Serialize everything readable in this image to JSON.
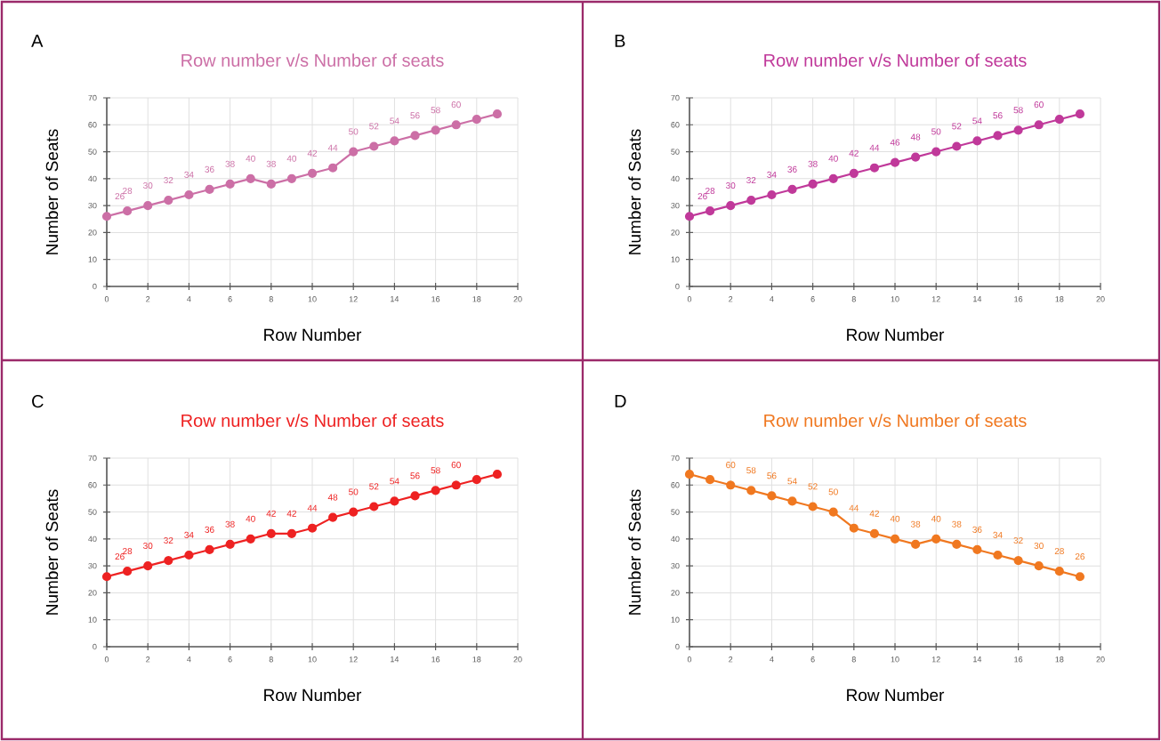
{
  "chart_data": [
    {
      "type": "line",
      "title": "Row number v/s Number of seats",
      "xlabel": "Row Number",
      "ylabel": "Number of Seats",
      "annotations": [
        "A"
      ],
      "x": [
        0,
        1,
        2,
        3,
        4,
        5,
        6,
        7,
        8,
        9,
        10,
        11,
        12,
        13,
        14,
        15,
        16,
        17,
        18,
        19
      ],
      "color": "#cc6fa6",
      "values": [
        26,
        28,
        30,
        32,
        34,
        36,
        38,
        40,
        38,
        40,
        42,
        44,
        50,
        52,
        54,
        56,
        58,
        60,
        62,
        64
      ],
      "value_labels": [
        "26",
        "28",
        "30",
        "32",
        "34",
        "36",
        "38",
        "40",
        "38",
        "40",
        "42",
        "44",
        "50",
        "52",
        "54",
        "56",
        "58",
        "60",
        null,
        null
      ],
      "xlim": [
        0,
        20
      ],
      "xticks": [
        0,
        2,
        4,
        6,
        8,
        10,
        12,
        14,
        16,
        18,
        20
      ],
      "ylim": [
        0,
        70
      ],
      "yticks": [
        0,
        10,
        20,
        30,
        40,
        50,
        60,
        70
      ],
      "grid": true,
      "marker": "circle"
    },
    {
      "type": "line",
      "title": "Row number v/s Number of seats",
      "xlabel": "Row Number",
      "ylabel": "Number of Seats",
      "annotations": [
        "B"
      ],
      "x": [
        0,
        1,
        2,
        3,
        4,
        5,
        6,
        7,
        8,
        9,
        10,
        11,
        12,
        13,
        14,
        15,
        16,
        17,
        18,
        19
      ],
      "color": "#c0399a",
      "values": [
        26,
        28,
        30,
        32,
        34,
        36,
        38,
        40,
        42,
        44,
        46,
        48,
        50,
        52,
        54,
        56,
        58,
        60,
        62,
        64
      ],
      "value_labels": [
        "26",
        "28",
        "30",
        "32",
        "34",
        "36",
        "38",
        "40",
        "42",
        "44",
        "46",
        "48",
        "50",
        "52",
        "54",
        "56",
        "58",
        "60",
        null,
        null
      ],
      "xlim": [
        0,
        20
      ],
      "xticks": [
        0,
        2,
        4,
        6,
        8,
        10,
        12,
        14,
        16,
        18,
        20
      ],
      "ylim": [
        0,
        70
      ],
      "yticks": [
        0,
        10,
        20,
        30,
        40,
        50,
        60,
        70
      ],
      "grid": true,
      "marker": "circle"
    },
    {
      "type": "line",
      "title": "Row number v/s Number of seats",
      "xlabel": "Row Number",
      "ylabel": "Number of Seats",
      "annotations": [
        "C"
      ],
      "x": [
        0,
        1,
        2,
        3,
        4,
        5,
        6,
        7,
        8,
        9,
        10,
        11,
        12,
        13,
        14,
        15,
        16,
        17,
        18,
        19
      ],
      "color": "#ee2222",
      "values": [
        26,
        28,
        30,
        32,
        34,
        36,
        38,
        40,
        42,
        42,
        44,
        48,
        50,
        52,
        54,
        56,
        58,
        60,
        62,
        64
      ],
      "value_labels": [
        "26",
        "28",
        "30",
        "32",
        "34",
        "36",
        "38",
        "40",
        "42",
        "42",
        "44",
        "48",
        "50",
        "52",
        "54",
        "56",
        "58",
        "60",
        null,
        null
      ],
      "xlim": [
        0,
        20
      ],
      "xticks": [
        0,
        2,
        4,
        6,
        8,
        10,
        12,
        14,
        16,
        18,
        20
      ],
      "ylim": [
        0,
        70
      ],
      "yticks": [
        0,
        10,
        20,
        30,
        40,
        50,
        60,
        70
      ],
      "grid": true,
      "marker": "circle"
    },
    {
      "type": "line",
      "title": "Row number v/s Number of seats",
      "xlabel": "Row Number",
      "ylabel": "Number of Seats",
      "annotations": [
        "D"
      ],
      "x": [
        0,
        1,
        2,
        3,
        4,
        5,
        6,
        7,
        8,
        9,
        10,
        11,
        12,
        13,
        14,
        15,
        16,
        17,
        18,
        19
      ],
      "color": "#f07820",
      "values": [
        64,
        62,
        60,
        58,
        56,
        54,
        52,
        50,
        44,
        42,
        40,
        38,
        40,
        38,
        36,
        34,
        32,
        30,
        28,
        26
      ],
      "value_labels": [
        null,
        null,
        "60",
        "58",
        "56",
        "54",
        "52",
        "50",
        "44",
        "42",
        "40",
        "38",
        "40",
        "38",
        "36",
        "34",
        "32",
        "30",
        "28",
        "26"
      ],
      "xlim": [
        0,
        20
      ],
      "xticks": [
        0,
        2,
        4,
        6,
        8,
        10,
        12,
        14,
        16,
        18,
        20
      ],
      "ylim": [
        0,
        70
      ],
      "yticks": [
        0,
        10,
        20,
        30,
        40,
        50,
        60,
        70
      ],
      "grid": true,
      "marker": "circle"
    }
  ]
}
